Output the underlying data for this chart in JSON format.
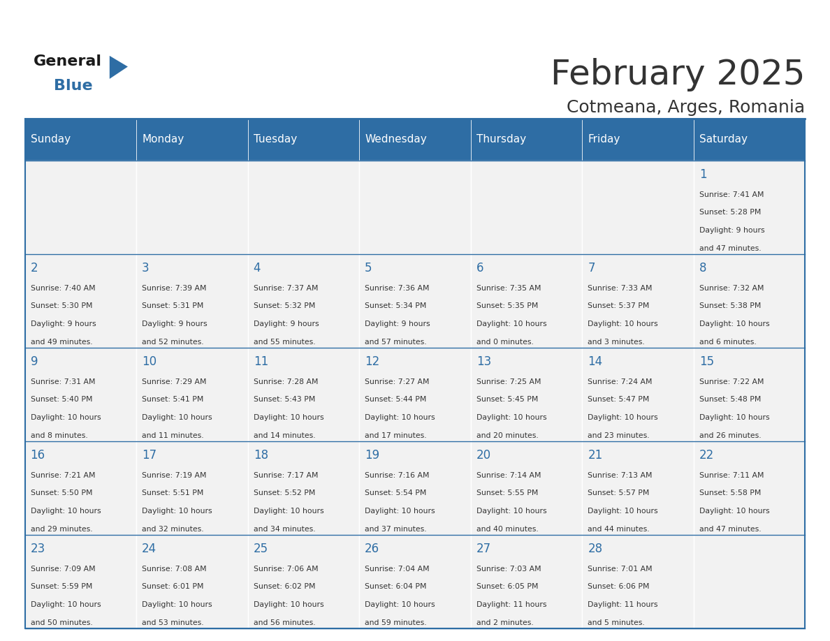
{
  "title": "February 2025",
  "subtitle": "Cotmeana, Arges, Romania",
  "header_color": "#2E6DA4",
  "header_text_color": "#FFFFFF",
  "cell_bg_color": "#F2F2F2",
  "border_color": "#2E6DA4",
  "day_number_color": "#2E6DA4",
  "text_color": "#333333",
  "days_of_week": [
    "Sunday",
    "Monday",
    "Tuesday",
    "Wednesday",
    "Thursday",
    "Friday",
    "Saturday"
  ],
  "weeks": [
    [
      {
        "day": "",
        "info": ""
      },
      {
        "day": "",
        "info": ""
      },
      {
        "day": "",
        "info": ""
      },
      {
        "day": "",
        "info": ""
      },
      {
        "day": "",
        "info": ""
      },
      {
        "day": "",
        "info": ""
      },
      {
        "day": "1",
        "info": "Sunrise: 7:41 AM\nSunset: 5:28 PM\nDaylight: 9 hours\nand 47 minutes."
      }
    ],
    [
      {
        "day": "2",
        "info": "Sunrise: 7:40 AM\nSunset: 5:30 PM\nDaylight: 9 hours\nand 49 minutes."
      },
      {
        "day": "3",
        "info": "Sunrise: 7:39 AM\nSunset: 5:31 PM\nDaylight: 9 hours\nand 52 minutes."
      },
      {
        "day": "4",
        "info": "Sunrise: 7:37 AM\nSunset: 5:32 PM\nDaylight: 9 hours\nand 55 minutes."
      },
      {
        "day": "5",
        "info": "Sunrise: 7:36 AM\nSunset: 5:34 PM\nDaylight: 9 hours\nand 57 minutes."
      },
      {
        "day": "6",
        "info": "Sunrise: 7:35 AM\nSunset: 5:35 PM\nDaylight: 10 hours\nand 0 minutes."
      },
      {
        "day": "7",
        "info": "Sunrise: 7:33 AM\nSunset: 5:37 PM\nDaylight: 10 hours\nand 3 minutes."
      },
      {
        "day": "8",
        "info": "Sunrise: 7:32 AM\nSunset: 5:38 PM\nDaylight: 10 hours\nand 6 minutes."
      }
    ],
    [
      {
        "day": "9",
        "info": "Sunrise: 7:31 AM\nSunset: 5:40 PM\nDaylight: 10 hours\nand 8 minutes."
      },
      {
        "day": "10",
        "info": "Sunrise: 7:29 AM\nSunset: 5:41 PM\nDaylight: 10 hours\nand 11 minutes."
      },
      {
        "day": "11",
        "info": "Sunrise: 7:28 AM\nSunset: 5:43 PM\nDaylight: 10 hours\nand 14 minutes."
      },
      {
        "day": "12",
        "info": "Sunrise: 7:27 AM\nSunset: 5:44 PM\nDaylight: 10 hours\nand 17 minutes."
      },
      {
        "day": "13",
        "info": "Sunrise: 7:25 AM\nSunset: 5:45 PM\nDaylight: 10 hours\nand 20 minutes."
      },
      {
        "day": "14",
        "info": "Sunrise: 7:24 AM\nSunset: 5:47 PM\nDaylight: 10 hours\nand 23 minutes."
      },
      {
        "day": "15",
        "info": "Sunrise: 7:22 AM\nSunset: 5:48 PM\nDaylight: 10 hours\nand 26 minutes."
      }
    ],
    [
      {
        "day": "16",
        "info": "Sunrise: 7:21 AM\nSunset: 5:50 PM\nDaylight: 10 hours\nand 29 minutes."
      },
      {
        "day": "17",
        "info": "Sunrise: 7:19 AM\nSunset: 5:51 PM\nDaylight: 10 hours\nand 32 minutes."
      },
      {
        "day": "18",
        "info": "Sunrise: 7:17 AM\nSunset: 5:52 PM\nDaylight: 10 hours\nand 34 minutes."
      },
      {
        "day": "19",
        "info": "Sunrise: 7:16 AM\nSunset: 5:54 PM\nDaylight: 10 hours\nand 37 minutes."
      },
      {
        "day": "20",
        "info": "Sunrise: 7:14 AM\nSunset: 5:55 PM\nDaylight: 10 hours\nand 40 minutes."
      },
      {
        "day": "21",
        "info": "Sunrise: 7:13 AM\nSunset: 5:57 PM\nDaylight: 10 hours\nand 44 minutes."
      },
      {
        "day": "22",
        "info": "Sunrise: 7:11 AM\nSunset: 5:58 PM\nDaylight: 10 hours\nand 47 minutes."
      }
    ],
    [
      {
        "day": "23",
        "info": "Sunrise: 7:09 AM\nSunset: 5:59 PM\nDaylight: 10 hours\nand 50 minutes."
      },
      {
        "day": "24",
        "info": "Sunrise: 7:08 AM\nSunset: 6:01 PM\nDaylight: 10 hours\nand 53 minutes."
      },
      {
        "day": "25",
        "info": "Sunrise: 7:06 AM\nSunset: 6:02 PM\nDaylight: 10 hours\nand 56 minutes."
      },
      {
        "day": "26",
        "info": "Sunrise: 7:04 AM\nSunset: 6:04 PM\nDaylight: 10 hours\nand 59 minutes."
      },
      {
        "day": "27",
        "info": "Sunrise: 7:03 AM\nSunset: 6:05 PM\nDaylight: 11 hours\nand 2 minutes."
      },
      {
        "day": "28",
        "info": "Sunrise: 7:01 AM\nSunset: 6:06 PM\nDaylight: 11 hours\nand 5 minutes."
      },
      {
        "day": "",
        "info": ""
      }
    ]
  ],
  "logo_text_general": "General",
  "logo_text_blue": "Blue",
  "logo_color_general": "#1a1a1a",
  "logo_color_blue": "#2E6DA4",
  "logo_triangle_color": "#2E6DA4"
}
